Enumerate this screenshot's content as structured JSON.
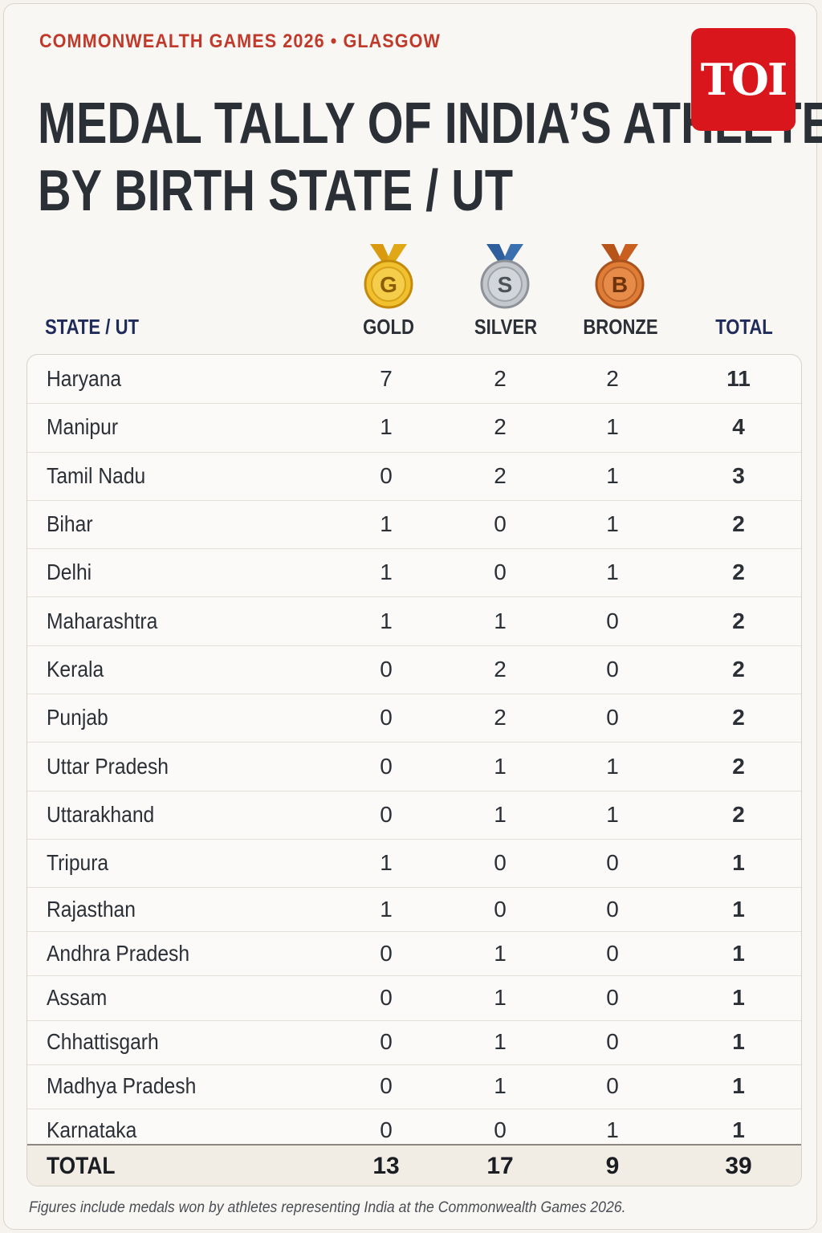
{
  "kicker": "COMMONWEALTH GAMES 2026 • GLASGOW",
  "title_line1": "MEDAL TALLY OF INDIA’S ATHLETES",
  "title_line2": "BY BIRTH STATE / UT",
  "logo_text": "TOI",
  "columns": {
    "state": "STATE / UT",
    "gold": "GOLD",
    "silver": "SILVER",
    "bronze": "BRONZE",
    "total": "TOTAL"
  },
  "medal_icons": {
    "gold": {
      "icon": "gold-medal-icon",
      "letter": "G",
      "color": "#e6b325",
      "ribbon": "#e0a817"
    },
    "silver": {
      "icon": "silver-medal-icon",
      "letter": "S",
      "color": "#b8bcc2",
      "ribbon": "#3a6fb0"
    },
    "bronze": {
      "icon": "bronze-medal-icon",
      "letter": "B",
      "color": "#d8742e",
      "ribbon": "#c9601f"
    }
  },
  "colors": {
    "kicker": "#c0392b",
    "logo": "#d8161c",
    "header_text": "#1f2b5a"
  },
  "chart_data": {
    "type": "table",
    "title": "MEDAL TALLY OF INDIA’S ATHLETES BY BIRTH STATE / UT",
    "columns": [
      "STATE / UT",
      "GOLD",
      "SILVER",
      "BRONZE",
      "TOTAL"
    ],
    "rows": [
      {
        "state": "Haryana",
        "gold": 7,
        "silver": 2,
        "bronze": 2,
        "total": 11
      },
      {
        "state": "Manipur",
        "gold": 1,
        "silver": 2,
        "bronze": 1,
        "total": 4
      },
      {
        "state": "Tamil Nadu",
        "gold": 0,
        "silver": 2,
        "bronze": 1,
        "total": 3
      },
      {
        "state": "Bihar",
        "gold": 1,
        "silver": 0,
        "bronze": 1,
        "total": 2
      },
      {
        "state": "Delhi",
        "gold": 1,
        "silver": 0,
        "bronze": 1,
        "total": 2
      },
      {
        "state": "Maharashtra",
        "gold": 1,
        "silver": 1,
        "bronze": 0,
        "total": 2
      },
      {
        "state": "Kerala",
        "gold": 0,
        "silver": 2,
        "bronze": 0,
        "total": 2
      },
      {
        "state": "Punjab",
        "gold": 0,
        "silver": 2,
        "bronze": 0,
        "total": 2
      },
      {
        "state": "Uttar Pradesh",
        "gold": 0,
        "silver": 1,
        "bronze": 1,
        "total": 2
      },
      {
        "state": "Uttarakhand",
        "gold": 0,
        "silver": 1,
        "bronze": 1,
        "total": 2
      },
      {
        "state": "Tripura",
        "gold": 1,
        "silver": 0,
        "bronze": 0,
        "total": 1
      },
      {
        "state": "Rajasthan",
        "gold": 1,
        "silver": 0,
        "bronze": 0,
        "total": 1
      },
      {
        "state": "Andhra Pradesh",
        "gold": 0,
        "silver": 1,
        "bronze": 0,
        "total": 1
      },
      {
        "state": "Assam",
        "gold": 0,
        "silver": 1,
        "bronze": 0,
        "total": 1
      },
      {
        "state": "Chhattisgarh",
        "gold": 0,
        "silver": 1,
        "bronze": 0,
        "total": 1
      },
      {
        "state": "Madhya Pradesh",
        "gold": 0,
        "silver": 1,
        "bronze": 0,
        "total": 1
      },
      {
        "state": "Karnataka",
        "gold": 0,
        "silver": 0,
        "bronze": 1,
        "total": 1
      }
    ],
    "totals": {
      "label": "TOTAL",
      "gold": 13,
      "silver": 17,
      "bronze": 9,
      "total": 39
    }
  },
  "footnote": "Figures include medals won by athletes representing India at the Commonwealth Games 2026."
}
